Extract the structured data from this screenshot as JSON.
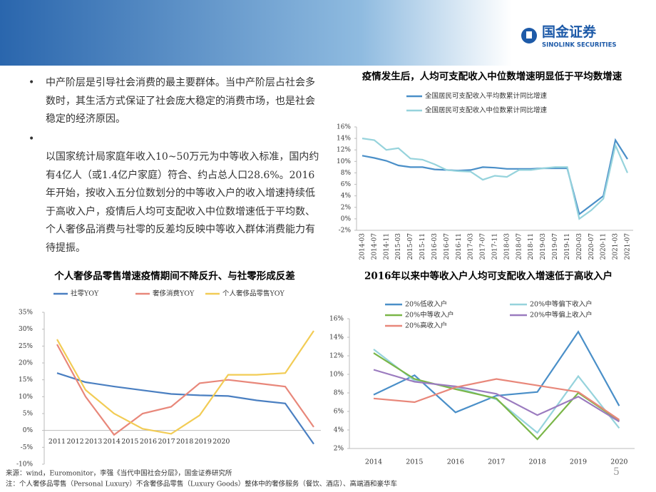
{
  "header": {
    "logo_cn": "国金证券",
    "logo_en": "SINOLINK SECURITIES"
  },
  "bullets": [
    "中产阶层是引导社会消费的最主要群体。当中产阶层占社会多数时，其生活方式保证了社会庞大稳定的消费市场，也是社会稳定的经济原因。",
    "以国家统计局家庭年收入10~50万元为中等收入标准，国内约有4亿人（或1.4亿户家庭）符合、约占总人口28.6%。2016年开始，按收入五分位数划分的中等收入户的收入增速持续低于高收入户，疫情后人均可支配收入中位数增速低于平均数、个人奢侈品消费与社零的反差均反映中等收入群体消费能力有待提振。"
  ],
  "chart_data": [
    {
      "type": "line",
      "title": "疫情发生后，人均可支配收入中位数增速明显低于平均数增速",
      "categories": [
        "2014-03",
        "2014-07",
        "2014-11",
        "2015-03",
        "2015-07",
        "2015-11",
        "2016-03",
        "2016-07",
        "2016-11",
        "2017-03",
        "2017-07",
        "2017-11",
        "2018-03",
        "2018-07",
        "2018-11",
        "2019-03",
        "2019-07",
        "2019-11",
        "2020-03",
        "2020-07",
        "2020-11",
        "2021-03",
        "2021-07"
      ],
      "series": [
        {
          "name": "全国居民可支配收入平均数累计同比增速",
          "color": "#4a8fc8",
          "values": [
            11.0,
            10.6,
            10.1,
            9.3,
            9.0,
            9.0,
            8.6,
            8.5,
            8.4,
            8.5,
            9.0,
            8.9,
            8.7,
            8.7,
            8.7,
            8.8,
            8.8,
            8.8,
            0.8,
            2.4,
            4.0,
            13.7,
            10.4
          ]
        },
        {
          "name": "全国居民可支配收入中位数累计同比增速",
          "color": "#96d3dc",
          "values": [
            14.0,
            13.7,
            12.0,
            12.3,
            10.5,
            10.3,
            9.5,
            8.5,
            8.3,
            8.2,
            6.8,
            7.5,
            7.3,
            8.5,
            8.5,
            8.8,
            9.0,
            9.0,
            0.0,
            1.5,
            3.5,
            12.8,
            8.0
          ]
        }
      ],
      "ylim": [
        -2,
        16
      ],
      "yticks": [
        {
          "value": -2,
          "label": "-2%"
        },
        {
          "value": 0,
          "label": "0%"
        },
        {
          "value": 2,
          "label": "2%"
        },
        {
          "value": 4,
          "label": "4%"
        },
        {
          "value": 6,
          "label": "6%"
        },
        {
          "value": 8,
          "label": "8%"
        },
        {
          "value": 10,
          "label": "10%"
        },
        {
          "value": 12,
          "label": "12%"
        },
        {
          "value": 14,
          "label": "14%"
        },
        {
          "value": 16,
          "label": "16%"
        }
      ],
      "grid": false
    },
    {
      "type": "line",
      "title": "个人奢侈品零售增速疫情期间不降反升、与社零形成反差",
      "categories": [
        "2011",
        "2012",
        "2013",
        "2014",
        "2015",
        "2016",
        "2017",
        "2018",
        "2019",
        "2020"
      ],
      "series": [
        {
          "name": "社零YOY",
          "color": "#4a7fc1",
          "values": [
            17.0,
            14.3,
            13.0,
            11.9,
            10.8,
            10.4,
            10.2,
            8.9,
            8.0,
            -4.0
          ]
        },
        {
          "name": "奢侈消费YOY",
          "color": "#e8877a",
          "values": [
            25.5,
            10.0,
            -1.3,
            5.0,
            7.0,
            14.0,
            15.0,
            14.0,
            13.0,
            1.0
          ]
        },
        {
          "name": "个人奢侈品零售YOY",
          "color": "#f2cc55",
          "values": [
            27.0,
            12.0,
            5.0,
            0.5,
            -1.0,
            4.5,
            16.5,
            16.5,
            17.0,
            29.5
          ]
        }
      ],
      "ylim": [
        -10,
        35
      ],
      "yticks": [
        {
          "value": -10,
          "label": "-10%"
        },
        {
          "value": -5,
          "label": "-5%"
        },
        {
          "value": 0,
          "label": "0%"
        },
        {
          "value": 5,
          "label": "5%"
        },
        {
          "value": 10,
          "label": "10%"
        },
        {
          "value": 15,
          "label": "15%"
        },
        {
          "value": 20,
          "label": "20%"
        },
        {
          "value": 25,
          "label": "25%"
        },
        {
          "value": 30,
          "label": "30%"
        },
        {
          "value": 35,
          "label": "35%"
        }
      ],
      "grid": false
    },
    {
      "type": "line",
      "title": "2016年以来中等收入户人均可支配收入增速低于高收入户",
      "categories": [
        "2014",
        "2015",
        "2016",
        "2017",
        "2018",
        "2019",
        "2020"
      ],
      "series": [
        {
          "name": "20%低收入户",
          "color": "#4a8fc8",
          "values": [
            7.8,
            9.9,
            5.9,
            7.7,
            8.1,
            14.6,
            6.6
          ]
        },
        {
          "name": "20%中等偏下收入户",
          "color": "#96d3dc",
          "values": [
            12.7,
            9.3,
            8.6,
            7.3,
            3.7,
            9.8,
            4.2
          ]
        },
        {
          "name": "20%中等收入户",
          "color": "#7ab648",
          "values": [
            12.3,
            9.5,
            8.4,
            7.4,
            3.0,
            8.0,
            5.0
          ]
        },
        {
          "name": "20%中等偏上收入户",
          "color": "#9b7bbf",
          "values": [
            10.5,
            9.2,
            8.7,
            7.9,
            5.6,
            7.6,
            4.9
          ]
        },
        {
          "name": "20%高收入户",
          "color": "#e8877a",
          "values": [
            7.4,
            7.0,
            8.6,
            9.5,
            8.8,
            8.1,
            5.1
          ]
        }
      ],
      "ylim": [
        2,
        16
      ],
      "yticks": [
        {
          "value": 2,
          "label": "2%"
        },
        {
          "value": 4,
          "label": "4%"
        },
        {
          "value": 6,
          "label": "6%"
        },
        {
          "value": 8,
          "label": "8%"
        },
        {
          "value": 10,
          "label": "10%"
        },
        {
          "value": 12,
          "label": "12%"
        },
        {
          "value": 14,
          "label": "14%"
        },
        {
          "value": 16,
          "label": "16%"
        }
      ],
      "grid": false
    }
  ],
  "footer": {
    "source": "来源：wind，Euromonitor，李强《当代中国社会分层》，国金证券研究所",
    "note": "注：个人奢侈品零售（Personal Luxury）不含奢侈品零售（Luxury Goods）整体中的奢侈服务（餐饮、酒店）、高端酒和豪华车",
    "page": "5"
  }
}
